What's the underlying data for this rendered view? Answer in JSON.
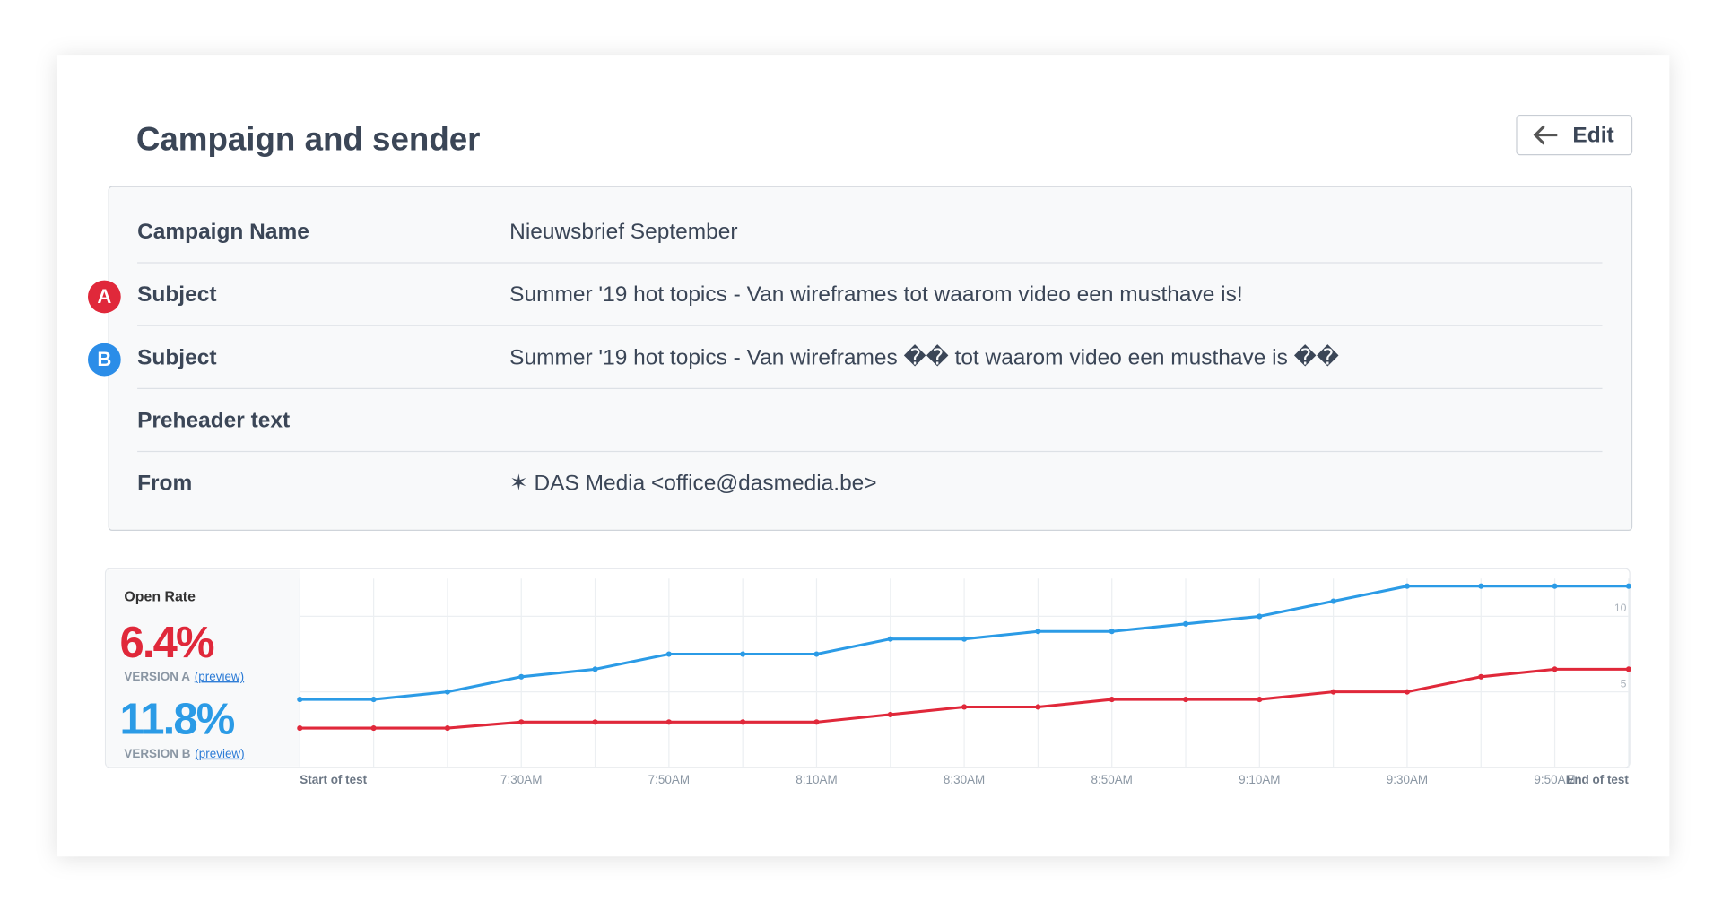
{
  "header": {
    "title": "Campaign and sender",
    "button": "Edit"
  },
  "table": {
    "rows": [
      {
        "label": "Campaign Name",
        "value": "Nieuwsbrief September"
      },
      {
        "badge": "A",
        "label": "Subject",
        "value": "Summer '19 hot topics - Van wireframes tot waarom video een musthave is!"
      },
      {
        "badge": "B",
        "label": "Subject",
        "value": "Summer '19 hot topics - Van wireframes �� tot waarom video een musthave is ��"
      },
      {
        "label": "Preheader text"
      },
      {
        "label": "From",
        "value": "✶ DAS Media <office@dasmedia.be>"
      }
    ]
  },
  "summary": {
    "label": "Open Rate",
    "versions": [
      {
        "rate": "6.4%",
        "name": "VERSION A",
        "link": "(preview)",
        "color": "#e0283a"
      },
      {
        "rate": "11.8%",
        "name": "VERSION B",
        "link": "(preview)",
        "color": "#2b9be6"
      }
    ]
  },
  "chart_data": {
    "type": "line",
    "categories": [
      "Start of test",
      null,
      null,
      "7:30AM",
      null,
      "7:50AM",
      null,
      "8:10AM",
      null,
      "8:30AM",
      null,
      "8:50AM",
      null,
      "9:10AM",
      null,
      "9:30AM",
      null,
      "9:50AM",
      "End of test"
    ],
    "series": [
      {
        "color": "#e0283a",
        "values": [
          2.6,
          2.6,
          2.6,
          3.0,
          3.0,
          3.0,
          3.0,
          3.0,
          3.5,
          4.0,
          4.0,
          4.5,
          4.5,
          4.5,
          5.0,
          5.0,
          6.0,
          6.5,
          6.5
        ]
      },
      {
        "color": "#2b9be6",
        "values": [
          4.5,
          4.5,
          5.0,
          6.0,
          6.5,
          7.5,
          7.5,
          7.5,
          8.5,
          8.5,
          9.0,
          9.0,
          9.5,
          10.0,
          11.0,
          12.0,
          12.0,
          12.0,
          12.0
        ]
      }
    ],
    "ylim": [
      0,
      12.5
    ],
    "yticks": [
      5,
      10
    ],
    "grid": true
  }
}
